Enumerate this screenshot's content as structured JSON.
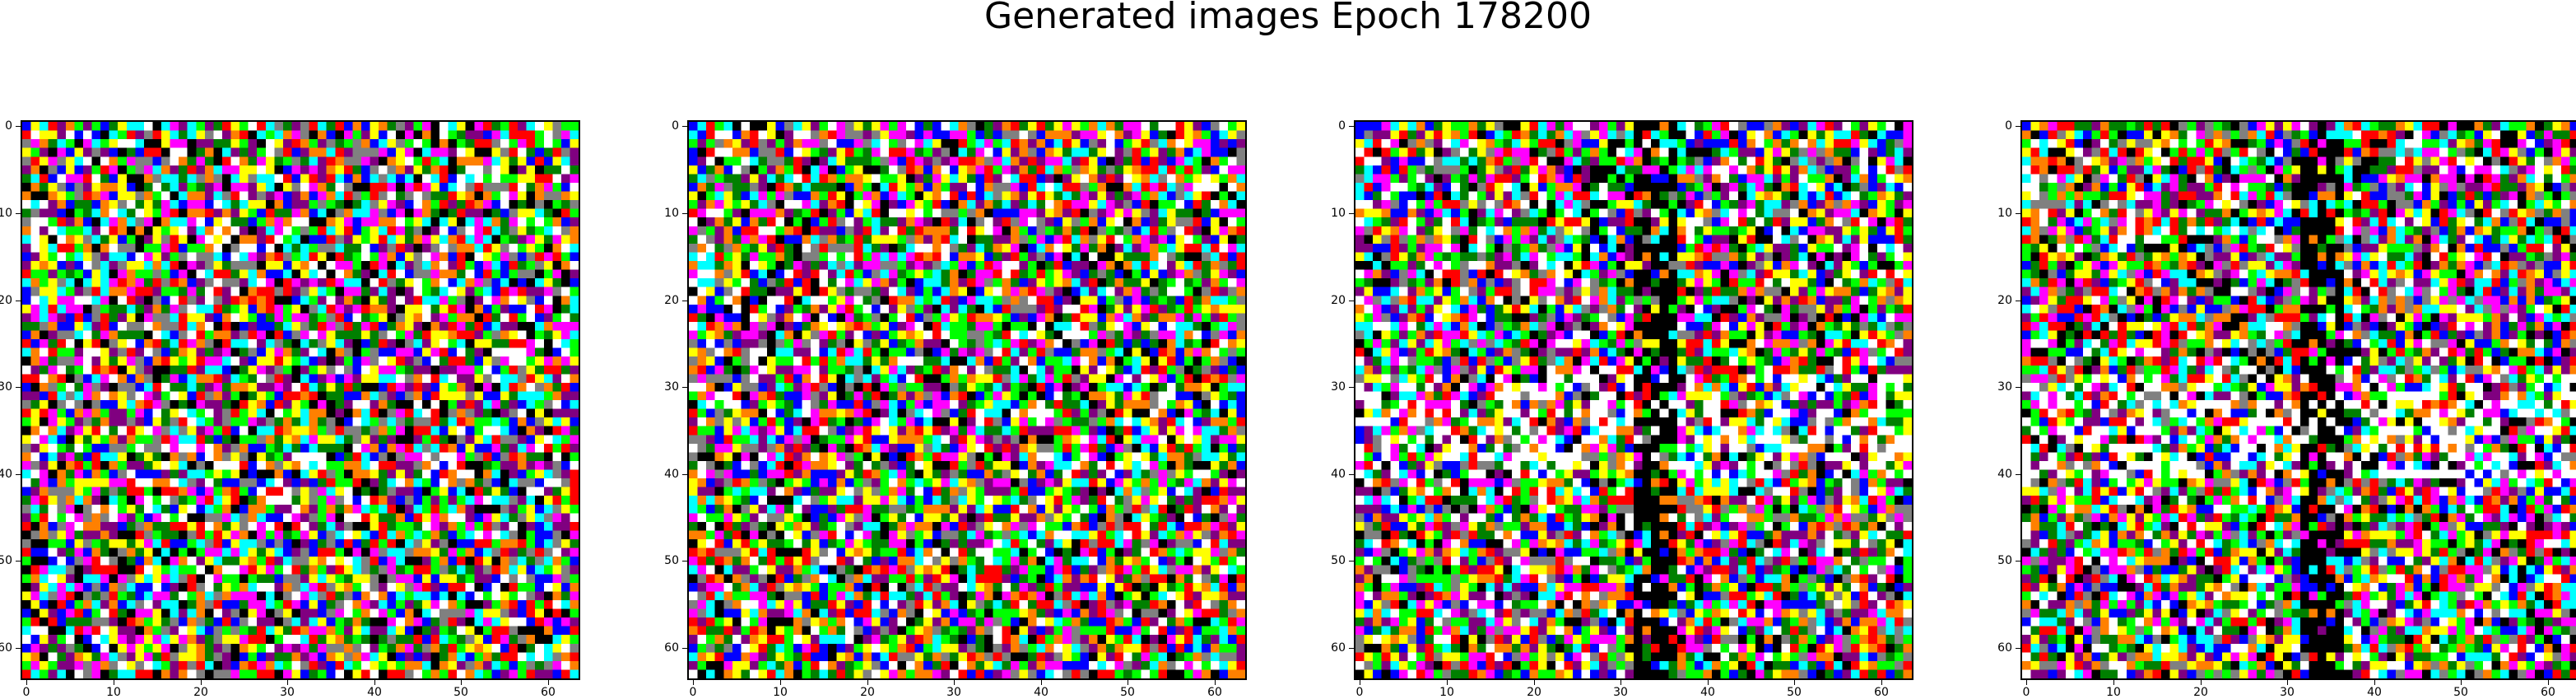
{
  "figure": {
    "title": "Generated images Epoch 178200"
  },
  "chart_data": [
    {
      "type": "heatmap",
      "title": "",
      "xlabel": "",
      "ylabel": "",
      "xlim": [
        0,
        63
      ],
      "ylim": [
        63,
        0
      ],
      "xticks": [
        "0",
        "10",
        "20",
        "30",
        "40",
        "50",
        "60"
      ],
      "yticks": [
        "0",
        "10",
        "20",
        "30",
        "40",
        "50",
        "60"
      ],
      "grid": false,
      "content": "64x64 RGB noise image, saturated primary/secondary colors",
      "seed": 11
    },
    {
      "type": "heatmap",
      "title": "",
      "xlabel": "",
      "ylabel": "",
      "xlim": [
        0,
        63
      ],
      "ylim": [
        63,
        0
      ],
      "xticks": [
        "0",
        "10",
        "20",
        "30",
        "40",
        "50",
        "60"
      ],
      "yticks": [
        "0",
        "10",
        "20",
        "30",
        "40",
        "50",
        "60"
      ],
      "grid": false,
      "content": "64x64 RGB noise image, saturated primary/secondary colors",
      "seed": 12
    },
    {
      "type": "heatmap",
      "title": "",
      "xlabel": "",
      "ylabel": "",
      "xlim": [
        0,
        63
      ],
      "ylim": [
        63,
        0
      ],
      "xticks": [
        "0",
        "10",
        "20",
        "30",
        "40",
        "50",
        "60"
      ],
      "yticks": [
        "0",
        "10",
        "20",
        "30",
        "40",
        "50",
        "60"
      ],
      "grid": false,
      "content": "64x64 RGB noise image with dark vertical band near column 35 and brighter band near rows 30-40",
      "seed": 21
    },
    {
      "type": "heatmap",
      "title": "",
      "xlabel": "",
      "ylabel": "",
      "xlim": [
        0,
        63
      ],
      "ylim": [
        63,
        0
      ],
      "xticks": [
        "0",
        "10",
        "20",
        "30",
        "40",
        "50",
        "60"
      ],
      "yticks": [
        "0",
        "10",
        "20",
        "30",
        "40",
        "50",
        "60"
      ],
      "grid": false,
      "content": "64x64 RGB noise image with dark vertical band near column 35 and brighter band near rows 30-40",
      "seed": 22
    }
  ]
}
